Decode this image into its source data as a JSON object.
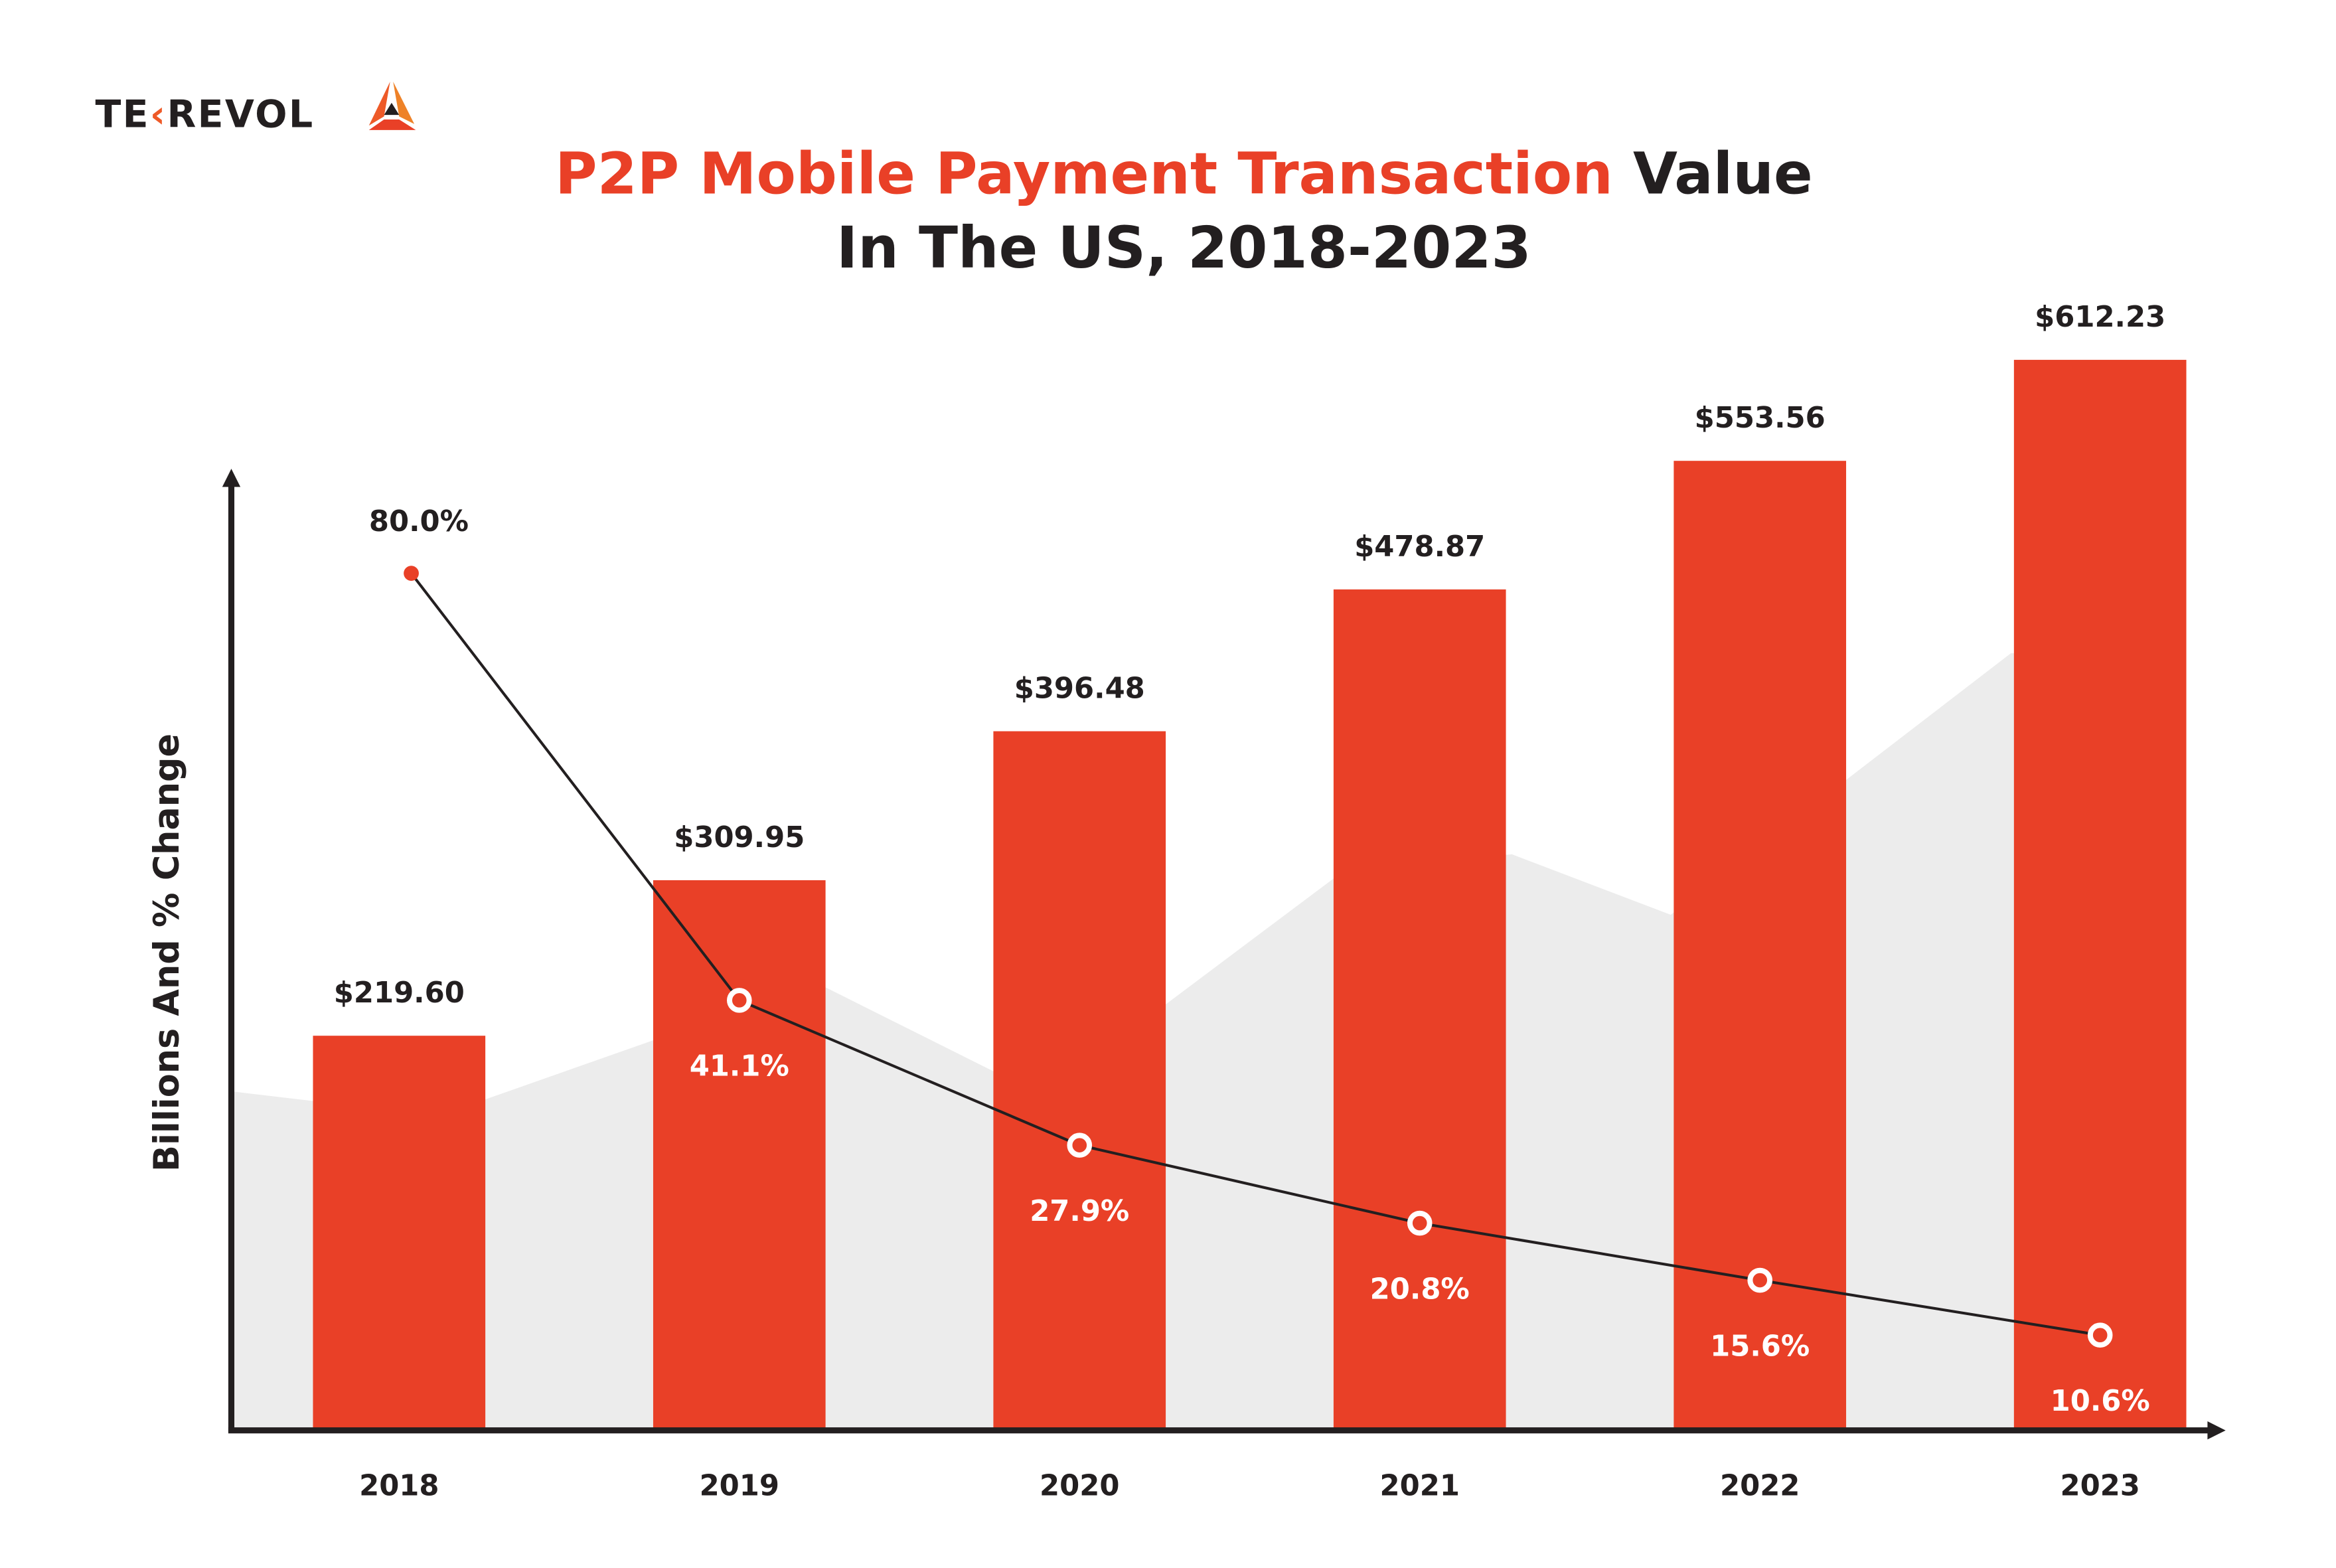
{
  "brand": {
    "logo_text": "TEKREVOL",
    "colors": {
      "dark": "#231f20",
      "orange": "#ee5a28",
      "amber": "#ee8228",
      "red": "#e94027"
    }
  },
  "title": {
    "highlight": "P2P Mobile Payment Transaction",
    "rest_line1": "Value",
    "line2": "In The US, 2018-2023"
  },
  "chart_data": {
    "type": "bar",
    "title": "P2P Mobile Payment Transaction Value In The US, 2018-2023",
    "ylabel": "Billions And % Change",
    "xlabel": "",
    "categories": [
      "2018",
      "2019",
      "2020",
      "2021",
      "2022",
      "2023"
    ],
    "series": [
      {
        "type": "bar",
        "values": [
          219.6,
          309.95,
          396.48,
          478.87,
          553.56,
          612.23
        ],
        "labels": [
          "$219.60",
          "$309.95",
          "$396.48",
          "$478.87",
          "$553.56",
          "$612.23"
        ],
        "color": "#e94027"
      },
      {
        "type": "line",
        "values": [
          80.0,
          41.1,
          27.9,
          20.8,
          15.6,
          10.6
        ],
        "labels": [
          "80.0%",
          "41.1%",
          "27.9%",
          "20.8%",
          "15.6%",
          "10.6%"
        ],
        "color": "#231f20"
      }
    ],
    "grid": false,
    "background_area_color": "#ececec"
  }
}
